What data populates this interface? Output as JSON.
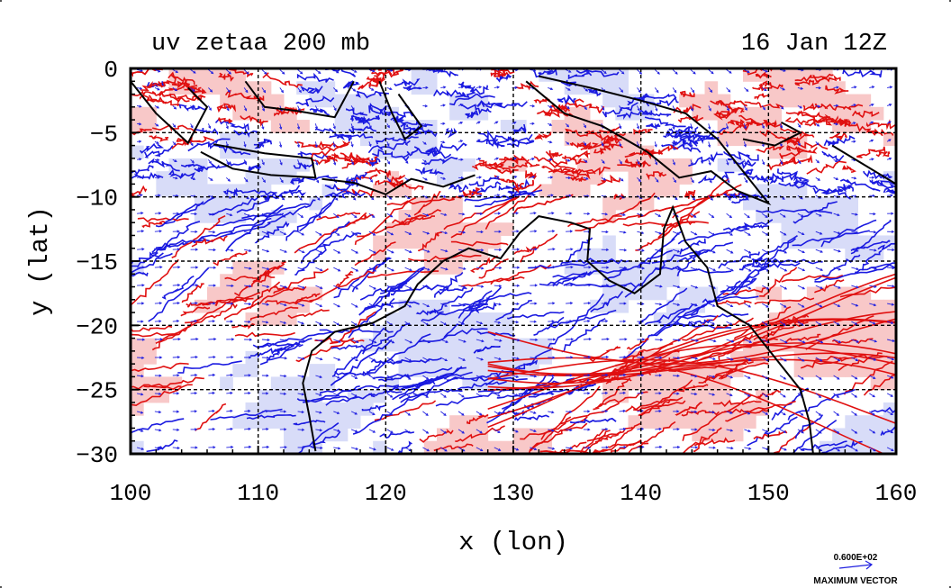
{
  "header": {
    "title_left": "uv zetaa 200 mb",
    "title_right": "16 Jan 12Z"
  },
  "chart_data": {
    "type": "contour",
    "title": "uv zetaa 200 mb",
    "subtitle": "16 Jan 12Z",
    "xlabel": "x (lon)",
    "ylabel": "y (lat)",
    "xlim": [
      100,
      160
    ],
    "ylim": [
      -30,
      0
    ],
    "x_ticks": [
      "100",
      "110",
      "120",
      "130",
      "140",
      "150",
      "160"
    ],
    "y_ticks": [
      "0",
      "−5",
      "−10",
      "−15",
      "−20",
      "−25",
      "−30"
    ],
    "grid": true,
    "colors": {
      "positive_contour": "#e01010",
      "positive_fill": "#f8c8c8",
      "negative_contour": "#1a1ae0",
      "negative_fill": "#d8dcf8",
      "wind_vectors": "#2020e0",
      "coastline": "#000000"
    },
    "vector_legend": {
      "value_label": "0.600E+02",
      "caption": "MAXIMUM VECTOR"
    }
  }
}
